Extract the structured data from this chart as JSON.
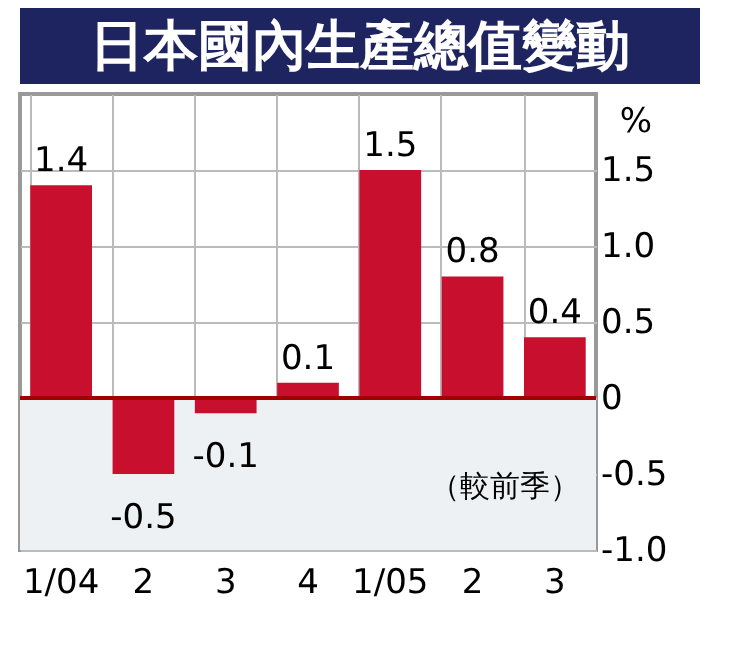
{
  "chart_data": {
    "type": "bar",
    "title": "日本國內生產總值變動",
    "ylabel": "%",
    "categories": [
      "1/04",
      "2",
      "3",
      "4",
      "1/05",
      "2",
      "3"
    ],
    "values": [
      1.4,
      -0.5,
      -0.1,
      0.1,
      1.5,
      0.8,
      0.4
    ],
    "color": "#c8102e",
    "ylim": [
      -1.0,
      2.0
    ],
    "yticks": [
      {
        "value": -1.0,
        "label": "-1.0"
      },
      {
        "value": -0.5,
        "label": "-0.5"
      },
      0,
      {
        "value": 0.5,
        "label": "0.5"
      },
      {
        "value": 1.0,
        "label": "1.0"
      },
      {
        "value": 1.5,
        "label": "1.5"
      }
    ],
    "bands": [
      {
        "axis": "y",
        "from": -1.0,
        "to": 0,
        "color": "#eef1f4"
      }
    ],
    "annotations": [
      "（較前季）"
    ],
    "ref_lines": [
      {
        "axis": "y",
        "value": 0,
        "color": "#a00000"
      }
    ],
    "data_labels": true,
    "grid": true
  }
}
